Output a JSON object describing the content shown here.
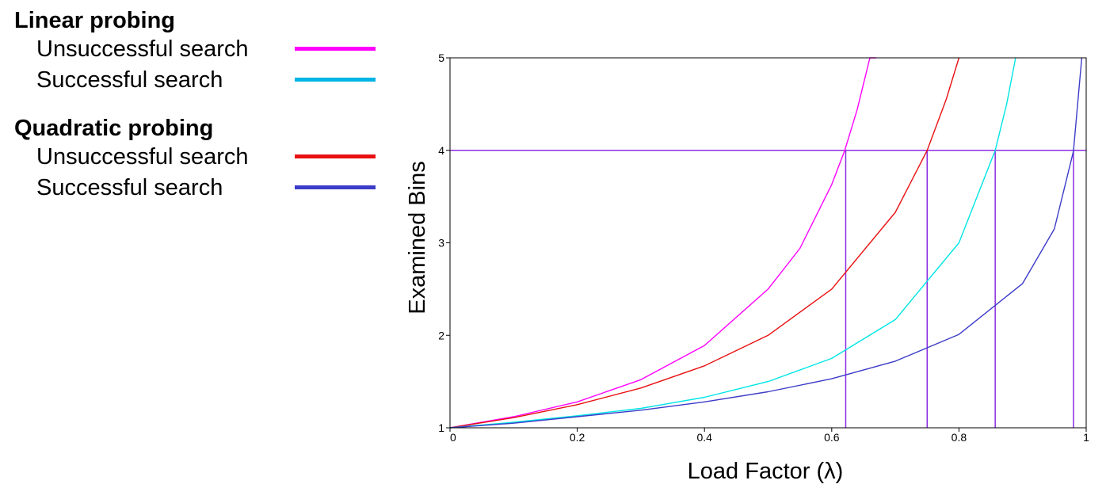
{
  "legend": {
    "groups": [
      {
        "title": "Linear probing",
        "items": [
          {
            "label": "Unsuccessful search",
            "color": "#ff00ff"
          },
          {
            "label": "Successful search",
            "color": "#00b4e6"
          }
        ]
      },
      {
        "title": "Quadratic probing",
        "items": [
          {
            "label": "Unsuccessful search",
            "color": "#e81010"
          },
          {
            "label": "Successful search",
            "color": "#3c3cc8"
          }
        ]
      }
    ]
  },
  "chart_data": {
    "type": "line",
    "xlabel": "Load Factor (λ)",
    "ylabel": "Examined Bins",
    "xlim": [
      0,
      1
    ],
    "ylim": [
      1,
      5
    ],
    "x_ticks": [
      "0",
      "0.2",
      "0.4",
      "0.6",
      "0.8",
      "1"
    ],
    "y_ticks": [
      "1",
      "2",
      "3",
      "4",
      "5"
    ],
    "grid": false,
    "series": [
      {
        "name": "Linear probing – Unsuccessful search",
        "color": "#ff00ff",
        "x": [
          0,
          0.1,
          0.2,
          0.3,
          0.4,
          0.5,
          0.55,
          0.6,
          0.62,
          0.64,
          0.66,
          0.67
        ],
        "y": [
          1.0,
          1.12,
          1.28,
          1.52,
          1.89,
          2.5,
          2.94,
          3.63,
          3.99,
          4.44,
          5.0,
          5.0
        ]
      },
      {
        "name": "Quadratic probing – Unsuccessful search",
        "color": "#e81010",
        "x": [
          0,
          0.1,
          0.2,
          0.3,
          0.4,
          0.5,
          0.6,
          0.7,
          0.75,
          0.78,
          0.8
        ],
        "y": [
          1.0,
          1.11,
          1.25,
          1.43,
          1.67,
          2.0,
          2.5,
          3.33,
          4.0,
          4.55,
          5.0
        ]
      },
      {
        "name": "Linear probing – Successful search",
        "color": "#00e5e5",
        "x": [
          0,
          0.1,
          0.2,
          0.3,
          0.4,
          0.5,
          0.6,
          0.7,
          0.8,
          0.857,
          0.875,
          0.889
        ],
        "y": [
          1.0,
          1.06,
          1.13,
          1.21,
          1.33,
          1.5,
          1.75,
          2.17,
          3.0,
          4.0,
          4.5,
          5.0
        ]
      },
      {
        "name": "Quadratic probing – Successful search",
        "color": "#3c3cc8",
        "x": [
          0,
          0.1,
          0.2,
          0.3,
          0.4,
          0.5,
          0.6,
          0.7,
          0.8,
          0.9,
          0.95,
          0.98,
          0.993
        ],
        "y": [
          1.0,
          1.05,
          1.12,
          1.19,
          1.28,
          1.39,
          1.53,
          1.72,
          2.01,
          2.56,
          3.15,
          3.99,
          5.0
        ]
      }
    ],
    "reference_lines": {
      "horizontal_y": 4,
      "vertical_x": [
        0.622,
        0.75,
        0.857,
        0.98
      ],
      "color": "#8a2be2"
    }
  }
}
